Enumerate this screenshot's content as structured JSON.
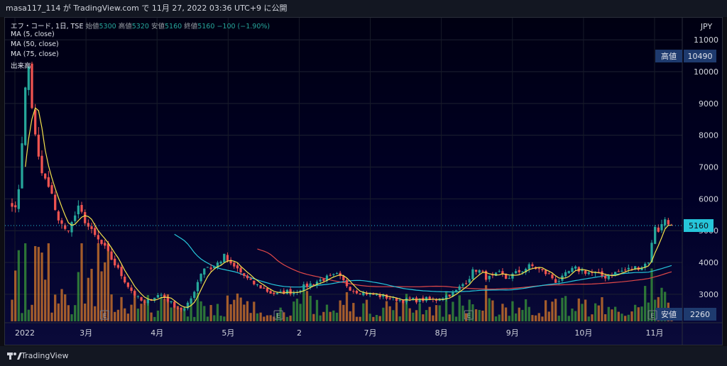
{
  "header": {
    "text": "masa117_114 が TradingView.com で 11月 27, 2022 03:36 UTC+9 に公開"
  },
  "legend": {
    "symbol": "エフ・コード, 1日, TSE",
    "open_label": "始値",
    "open": "5300",
    "high_label": "高値",
    "high": "5320",
    "low_label": "安値",
    "low": "5160",
    "close_label": "終値",
    "close": "5160",
    "change": "−100 (−1.90%)",
    "ma5": "MA (5, close)",
    "ma50": "MA (50, close)",
    "ma75": "MA (75, close)",
    "volume": "出来高"
  },
  "footer": {
    "brand": "TradingView"
  },
  "colors": {
    "up": "#26a69a",
    "down": "#ef5350",
    "ma5": "#f5e24b",
    "ma50": "#26c6da",
    "ma75": "#e04848",
    "vol_up": "#3a9a3a",
    "vol_down": "#d87a2a"
  },
  "chart_data": {
    "type": "candlestick",
    "currency": "JPY",
    "y_ticks": [
      3000,
      4000,
      5000,
      6000,
      7000,
      8000,
      9000,
      10000,
      11000
    ],
    "ylim": [
      2150,
      11650
    ],
    "x_labels": [
      "2022",
      "3月",
      "4月",
      "5月",
      "2",
      "7月",
      "8月",
      "9月",
      "10月",
      "11月"
    ],
    "last_price": "5160",
    "high_tag": {
      "label": "高値",
      "value": "10490"
    },
    "low_tag": {
      "label": "安値",
      "value": "2260"
    },
    "earnings_markers": [
      "E",
      "E",
      "E",
      "E"
    ],
    "price_path": [
      [
        0,
        5900
      ],
      [
        3,
        5500
      ],
      [
        6,
        7600
      ],
      [
        10,
        10490
      ],
      [
        14,
        8200
      ],
      [
        18,
        6900
      ],
      [
        22,
        6500
      ],
      [
        26,
        6000
      ],
      [
        30,
        5300
      ],
      [
        34,
        5000
      ],
      [
        38,
        5200
      ],
      [
        42,
        5700
      ],
      [
        46,
        5400
      ],
      [
        50,
        5000
      ],
      [
        55,
        4700
      ],
      [
        60,
        4400
      ],
      [
        65,
        4000
      ],
      [
        70,
        3600
      ],
      [
        75,
        3200
      ],
      [
        80,
        2900
      ],
      [
        85,
        2700
      ],
      [
        90,
        2900
      ],
      [
        95,
        3000
      ],
      [
        100,
        2800
      ],
      [
        105,
        2600
      ],
      [
        110,
        2500
      ],
      [
        114,
        2800
      ],
      [
        118,
        3300
      ],
      [
        121,
        3700
      ],
      [
        124,
        3900
      ],
      [
        128,
        3800
      ],
      [
        132,
        4000
      ],
      [
        136,
        4200
      ],
      [
        140,
        3900
      ],
      [
        144,
        3800
      ],
      [
        148,
        3600
      ],
      [
        152,
        3400
      ],
      [
        156,
        3300
      ],
      [
        160,
        3200
      ],
      [
        165,
        3050
      ],
      [
        170,
        3000
      ],
      [
        175,
        3100
      ],
      [
        180,
        3050
      ],
      [
        185,
        3200
      ],
      [
        190,
        3300
      ],
      [
        195,
        3400
      ],
      [
        200,
        3500
      ],
      [
        205,
        3550
      ],
      [
        208,
        3600
      ],
      [
        212,
        3400
      ],
      [
        216,
        3200
      ],
      [
        220,
        3100
      ],
      [
        225,
        3050
      ],
      [
        230,
        3000
      ],
      [
        235,
        2950
      ],
      [
        240,
        2900
      ],
      [
        245,
        2850
      ],
      [
        250,
        2800
      ],
      [
        255,
        2850
      ],
      [
        260,
        2800
      ],
      [
        265,
        2850
      ],
      [
        270,
        2800
      ],
      [
        275,
        2900
      ],
      [
        280,
        3000
      ],
      [
        284,
        3100
      ],
      [
        288,
        3300
      ],
      [
        292,
        3500
      ],
      [
        296,
        3800
      ],
      [
        300,
        3700
      ],
      [
        304,
        3500
      ],
      [
        308,
        3550
      ],
      [
        312,
        3650
      ],
      [
        316,
        3500
      ],
      [
        320,
        3600
      ],
      [
        324,
        3700
      ],
      [
        328,
        3800
      ],
      [
        332,
        3900
      ],
      [
        336,
        3800
      ],
      [
        340,
        3700
      ],
      [
        344,
        3600
      ],
      [
        348,
        3400
      ],
      [
        352,
        3500
      ],
      [
        356,
        3700
      ],
      [
        360,
        3800
      ],
      [
        364,
        3750
      ],
      [
        368,
        3700
      ],
      [
        372,
        3650
      ],
      [
        376,
        3600
      ],
      [
        380,
        3550
      ],
      [
        384,
        3650
      ],
      [
        388,
        3700
      ],
      [
        392,
        3750
      ],
      [
        396,
        3800
      ],
      [
        400,
        3850
      ],
      [
        404,
        3900
      ],
      [
        408,
        4100
      ],
      [
        411,
        5200
      ],
      [
        414,
        5000
      ],
      [
        418,
        5400
      ],
      [
        420,
        5300
      ],
      [
        422,
        5160
      ]
    ]
  }
}
